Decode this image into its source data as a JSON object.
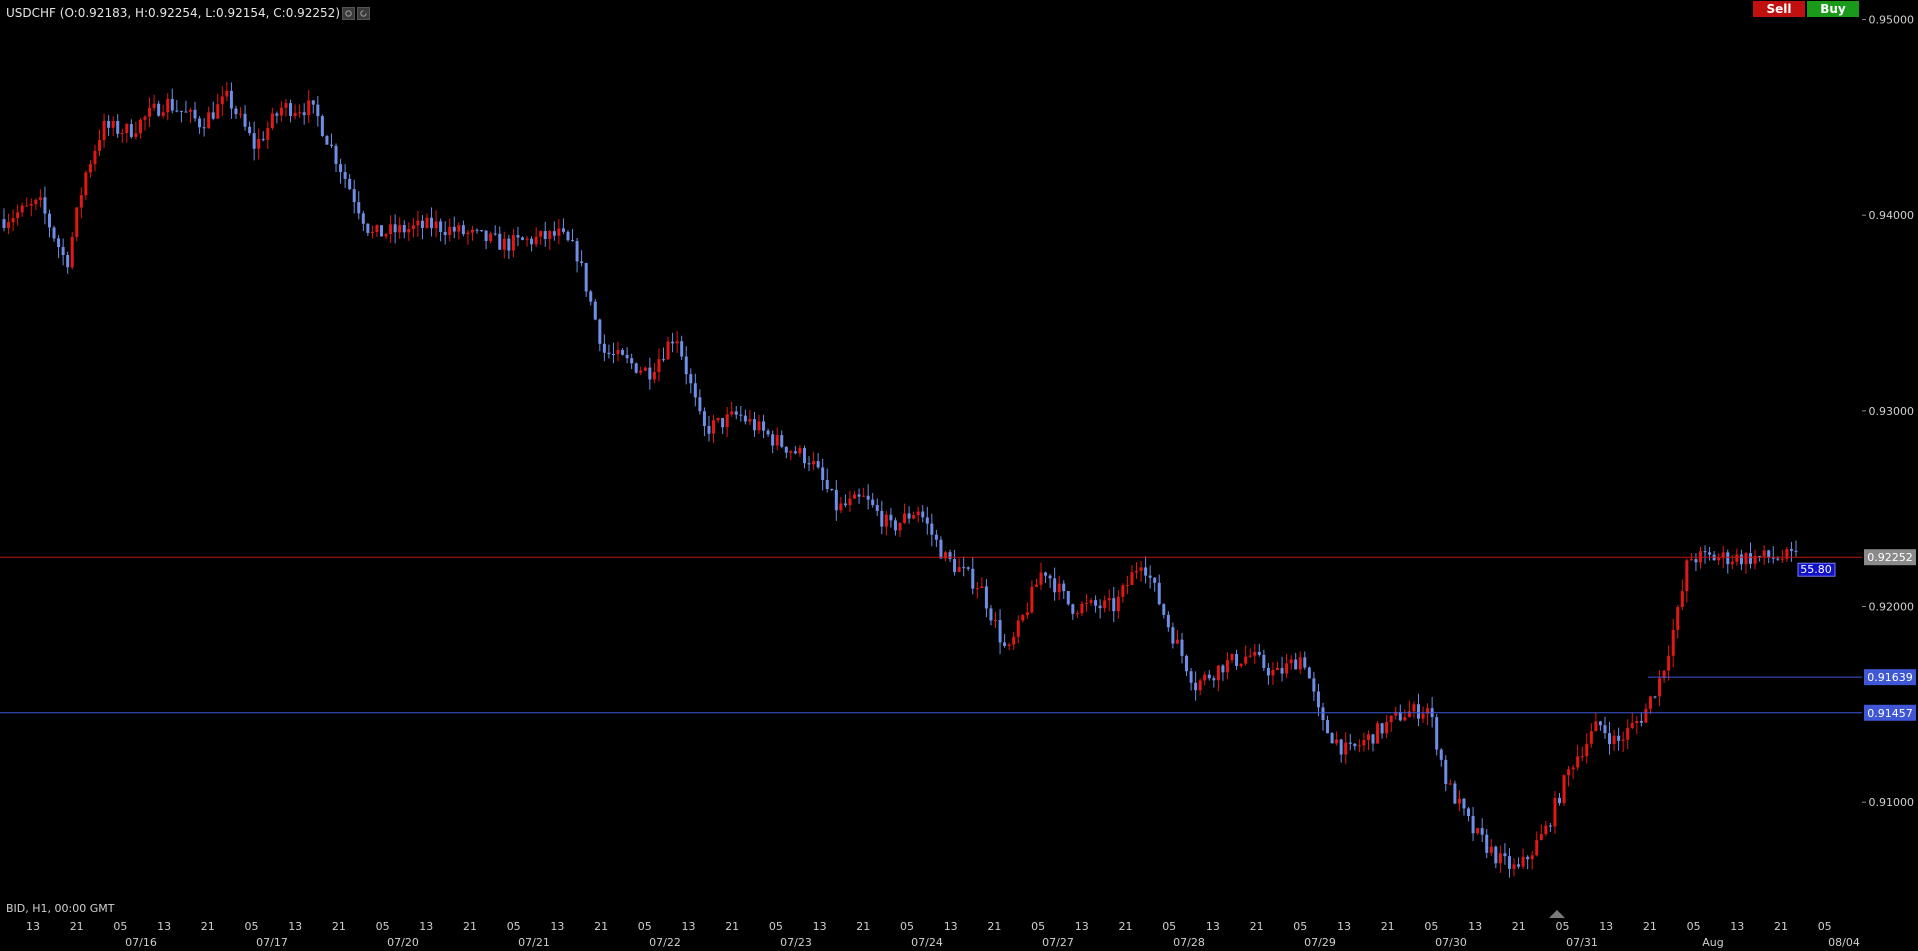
{
  "header": {
    "symbol_info": "USDCHF (O:0.92183, H:0.92254, L:0.92154, C:0.92252)",
    "icons": [
      "settings-icon",
      "refresh-icon"
    ]
  },
  "trade": {
    "sell_label": "Sell",
    "buy_label": "Buy",
    "sell_color": "#c01010",
    "buy_color": "#1a9a1a"
  },
  "footer": {
    "info": "BID, H1, 00:00 GMT"
  },
  "chart_data": {
    "type": "candlestick",
    "symbol": "USDCHF",
    "ylim": [
      0.905,
      0.951
    ],
    "y_ticks": [
      "0.95000",
      "0.94000",
      "0.93000",
      "0.92000",
      "0.91000"
    ],
    "x_hour_ticks": [
      "13",
      "21",
      "05",
      "13",
      "21",
      "05",
      "13",
      "21",
      "05",
      "13",
      "21",
      "05",
      "13",
      "21",
      "05",
      "13",
      "21",
      "05",
      "13",
      "21",
      "05",
      "13",
      "21",
      "05",
      "13",
      "21",
      "05",
      "13",
      "21",
      "05",
      "13",
      "21",
      "05",
      "13",
      "21",
      "05",
      "13",
      "21",
      "05",
      "13",
      "21",
      "05"
    ],
    "x_date_labels": [
      "07/16",
      "07/17",
      "07/20",
      "07/21",
      "07/22",
      "07/23",
      "07/24",
      "07/27",
      "07/28",
      "07/29",
      "07/30",
      "07/31",
      "Aug",
      "08/04"
    ],
    "price_lines": [
      {
        "label": "0.92252",
        "value": 0.92252,
        "color": "#c01515",
        "label_bg": "#8a8a8a"
      },
      {
        "label": "0.91639",
        "value": 0.91639,
        "color": "#3f57d6",
        "label_bg": "#3f57d6"
      },
      {
        "label": "0.91457",
        "value": 0.91457,
        "color": "#3f57d6",
        "label_bg": "#3f57d6"
      }
    ],
    "rsi_badge": "55.80",
    "colors": {
      "up": "#e01818",
      "down": "#6f8fe6",
      "grid": "#000000"
    },
    "path": [
      [
        0,
        0.9398
      ],
      [
        0.02,
        0.9406
      ],
      [
        0.035,
        0.9375
      ],
      [
        0.045,
        0.942
      ],
      [
        0.055,
        0.9445
      ],
      [
        0.07,
        0.9443
      ],
      [
        0.09,
        0.9458
      ],
      [
        0.11,
        0.9447
      ],
      [
        0.125,
        0.946
      ],
      [
        0.14,
        0.9435
      ],
      [
        0.155,
        0.9455
      ],
      [
        0.17,
        0.9455
      ],
      [
        0.175,
        0.945
      ],
      [
        0.19,
        0.942
      ],
      [
        0.205,
        0.939
      ],
      [
        0.24,
        0.9395
      ],
      [
        0.28,
        0.9385
      ],
      [
        0.31,
        0.939
      ],
      [
        0.32,
        0.938
      ],
      [
        0.335,
        0.933
      ],
      [
        0.36,
        0.932
      ],
      [
        0.375,
        0.934
      ],
      [
        0.39,
        0.929
      ],
      [
        0.41,
        0.9298
      ],
      [
        0.43,
        0.9285
      ],
      [
        0.45,
        0.9275
      ],
      [
        0.465,
        0.925
      ],
      [
        0.48,
        0.9255
      ],
      [
        0.495,
        0.924
      ],
      [
        0.51,
        0.925
      ],
      [
        0.525,
        0.9225
      ],
      [
        0.545,
        0.921
      ],
      [
        0.56,
        0.9175
      ],
      [
        0.58,
        0.922
      ],
      [
        0.595,
        0.92
      ],
      [
        0.62,
        0.92
      ],
      [
        0.635,
        0.9225
      ],
      [
        0.65,
        0.919
      ],
      [
        0.665,
        0.916
      ],
      [
        0.68,
        0.917
      ],
      [
        0.695,
        0.9175
      ],
      [
        0.71,
        0.9165
      ],
      [
        0.725,
        0.9175
      ],
      [
        0.735,
        0.914
      ],
      [
        0.75,
        0.9125
      ],
      [
        0.765,
        0.9135
      ],
      [
        0.78,
        0.9145
      ],
      [
        0.795,
        0.9148
      ],
      [
        0.805,
        0.911
      ],
      [
        0.82,
        0.9085
      ],
      [
        0.835,
        0.907
      ],
      [
        0.845,
        0.9065
      ],
      [
        0.86,
        0.9085
      ],
      [
        0.875,
        0.912
      ],
      [
        0.89,
        0.914
      ],
      [
        0.9,
        0.913
      ],
      [
        0.915,
        0.9145
      ],
      [
        0.925,
        0.9165
      ],
      [
        0.935,
        0.92
      ],
      [
        0.94,
        0.9225
      ]
    ]
  }
}
